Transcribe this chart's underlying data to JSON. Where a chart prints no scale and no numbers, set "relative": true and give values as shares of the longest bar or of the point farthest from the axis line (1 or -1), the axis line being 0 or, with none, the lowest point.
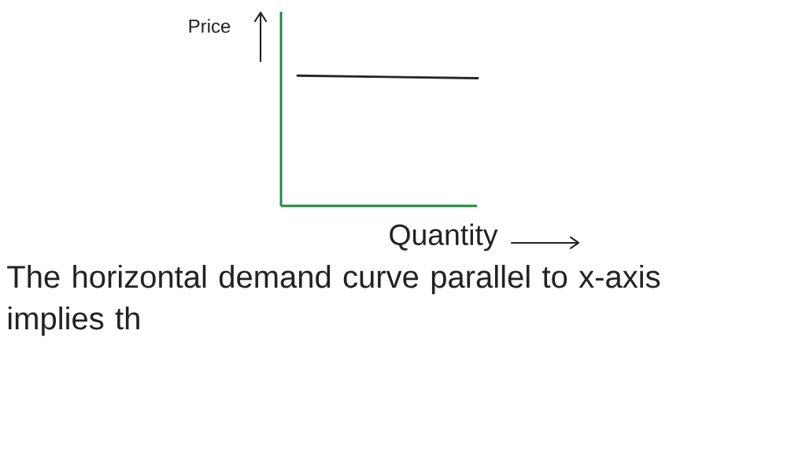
{
  "chart_data": {
    "type": "line",
    "relative": true,
    "categories": [
      null,
      null
    ],
    "values": [
      1,
      0.98
    ],
    "color": "#262626",
    "xlabel": "Quantity",
    "ylabel": "Price",
    "annotations": [
      "The horizontal demand curve parallel to x-axis implies th"
    ]
  }
}
